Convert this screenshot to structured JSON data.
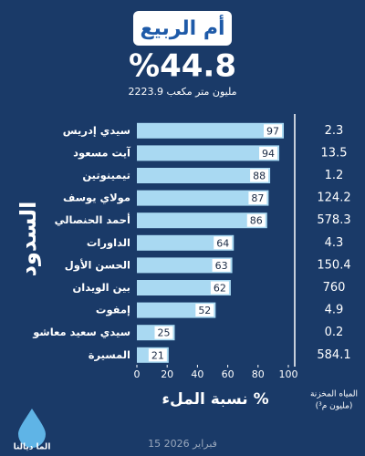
{
  "chart_data": {
    "type": "bar",
    "orientation": "horizontal",
    "title": "أم الربيع",
    "headline": {
      "value": 44.8,
      "label": "%44.8"
    },
    "subtitle": "2223.9 مليون متر مكعب",
    "y_axis_label": "السدود",
    "x_axis_label": "نسبة الملء %",
    "categories": [
      "سيدي إدريس",
      "آيت مسعود",
      "تيمينوتين",
      "مولاي يوسف",
      "أحمد الحنصالي",
      "الداورات",
      "الحسن الأول",
      "بين الويدان",
      "إمفوت",
      "سيدي سعيد معاشو",
      "المسيرة"
    ],
    "values": [
      97,
      94,
      88,
      87,
      86,
      64,
      63,
      62,
      52,
      25,
      21
    ],
    "color": "#a9d9f2",
    "xlim": [
      0,
      100
    ],
    "xticks": [
      0,
      20,
      40,
      60,
      80,
      100
    ],
    "stored_header": [
      "المياه المخزنة",
      "(مليون م³)"
    ],
    "stored_values": [
      2.3,
      13.5,
      1.2,
      124.2,
      578.3,
      4.3,
      150.4,
      760,
      4.9,
      0.2,
      584.1
    ]
  },
  "footer_date": "15 فبراير 2026",
  "brand": "الما ديالنا"
}
